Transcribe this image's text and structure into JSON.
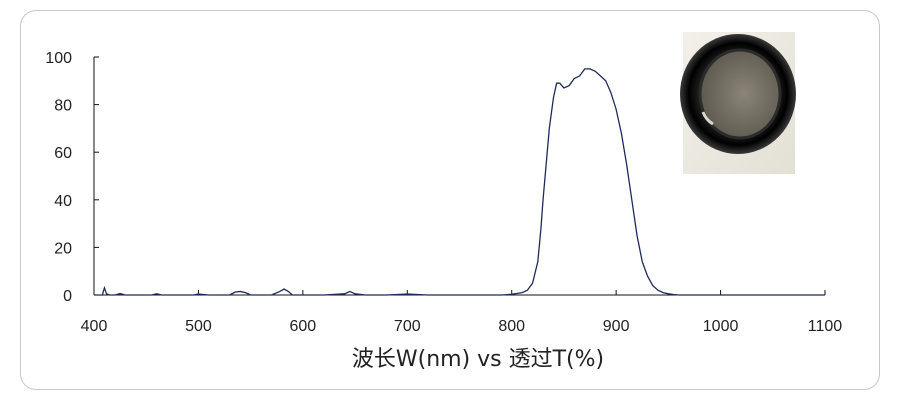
{
  "chart_data": {
    "type": "line",
    "xlabel": "波长W(nm) vs 透过T(%)",
    "ylabel": "",
    "title": "",
    "xlim": [
      400,
      1100
    ],
    "ylim": [
      0,
      100
    ],
    "x_ticks": [
      400,
      500,
      600,
      700,
      800,
      900,
      1000,
      1100
    ],
    "y_ticks": [
      0,
      20,
      40,
      60,
      80,
      100
    ],
    "grid": false,
    "line_color": "#1f2a5a",
    "series": [
      {
        "x": [
          400,
          408,
          410,
          412,
          415,
          420,
          425,
          430,
          440,
          455,
          460,
          465,
          480,
          495,
          500,
          510,
          530,
          535,
          540,
          545,
          550,
          560,
          570,
          578,
          582,
          586,
          590,
          600,
          620,
          640,
          645,
          650,
          660,
          680,
          700,
          720,
          740,
          760,
          780,
          790,
          800,
          810,
          815,
          820,
          825,
          828,
          830,
          833,
          836,
          840,
          843,
          846,
          850,
          855,
          860,
          865,
          870,
          875,
          880,
          885,
          890,
          895,
          900,
          905,
          910,
          915,
          920,
          925,
          930,
          935,
          940,
          945,
          950,
          955,
          960,
          965,
          970,
          980,
          1000,
          1050,
          1100
        ],
        "y": [
          0,
          0,
          3,
          0.5,
          0,
          0,
          0.6,
          0,
          0,
          0,
          0.5,
          0,
          0,
          0,
          0.4,
          0,
          0,
          1.2,
          1.5,
          1.0,
          0,
          0,
          0,
          1.5,
          2.5,
          1.5,
          0,
          0,
          0,
          0.5,
          1.5,
          0.5,
          0,
          0,
          0.4,
          0,
          0,
          0,
          0,
          0,
          0.3,
          1,
          2,
          5,
          14,
          28,
          40,
          55,
          70,
          83,
          89,
          89,
          87,
          88,
          91,
          92,
          95,
          95,
          94,
          92,
          90,
          85,
          78,
          68,
          55,
          40,
          25,
          14,
          8,
          4,
          2,
          1,
          0.5,
          0.2,
          0,
          0,
          0,
          0,
          0,
          0,
          0
        ]
      }
    ]
  },
  "inset_image": {
    "description_icon": "optical-filter-photo"
  }
}
